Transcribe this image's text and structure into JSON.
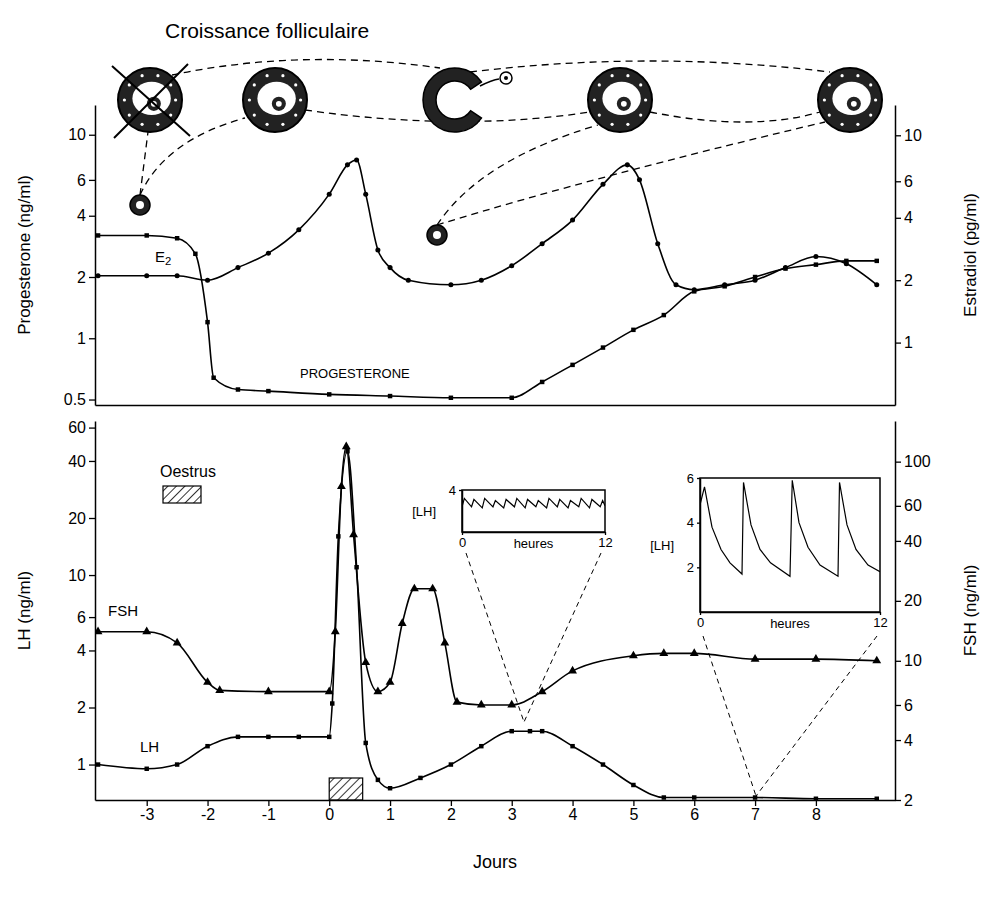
{
  "chart_data": [
    {
      "type": "line",
      "title": "Croissance folliculaire",
      "ylabel": "Progesterone (ng/ml)",
      "y2label": "Estradiol (pg/ml)",
      "xlim": [
        -3.85,
        9.3
      ],
      "ylim": [
        0.47,
        14
      ],
      "yticks": [
        0.5,
        1,
        2,
        4,
        6,
        10
      ],
      "y2lim": [
        0.5,
        14
      ],
      "y2ticks": [
        1,
        2,
        4,
        6,
        10
      ],
      "log": "y",
      "tick_labels": "y",
      "series": [
        {
          "name": "E2",
          "axis": "y2",
          "color": "#000000",
          "marker": "circle",
          "line_style": "solid",
          "x": [
            -3.8,
            -3,
            -2.5,
            -2,
            -1.5,
            -1,
            -0.5,
            0,
            0.3,
            0.45,
            0.6,
            0.8,
            1,
            1.3,
            2,
            2.5,
            3,
            3.5,
            4,
            4.5,
            4.9,
            5.1,
            5.4,
            5.7,
            6,
            6.5,
            7,
            7.5,
            8,
            8.5,
            9
          ],
          "values": [
            2.1,
            2.1,
            2.1,
            2.0,
            2.3,
            2.7,
            3.5,
            5.2,
            7.2,
            7.6,
            5.2,
            2.8,
            2.3,
            2.0,
            1.9,
            2.0,
            2.35,
            3.0,
            3.9,
            5.8,
            7.2,
            6.1,
            3.0,
            1.9,
            1.8,
            1.9,
            2.0,
            2.3,
            2.6,
            2.4,
            1.9
          ]
        },
        {
          "name": "PROGESTERONE",
          "color": "#000000",
          "marker": "square",
          "line_style": "solid",
          "x": [
            -3.8,
            -3,
            -2.5,
            -2.2,
            -2,
            -1.9,
            -1.5,
            -1,
            0,
            1,
            2,
            3,
            3.5,
            4,
            4.5,
            5,
            5.5,
            6,
            6.5,
            7,
            7.5,
            8,
            8.5,
            9
          ],
          "values": [
            3.2,
            3.2,
            3.1,
            2.6,
            1.2,
            0.64,
            0.56,
            0.55,
            0.53,
            0.52,
            0.51,
            0.51,
            0.61,
            0.74,
            0.9,
            1.1,
            1.3,
            1.7,
            1.8,
            2.0,
            2.2,
            2.3,
            2.4,
            2.4
          ]
        }
      ]
    },
    {
      "type": "line",
      "xlabel": "Jours",
      "ylabel": "LH (ng/ml)",
      "y2label": "FSH (ng/ml)",
      "xlim": [
        -3.85,
        9.3
      ],
      "xticks": [
        -3,
        -2,
        -1,
        0,
        1,
        2,
        3,
        4,
        5,
        6,
        7,
        8
      ],
      "ylim": [
        0.65,
        65
      ],
      "yticks": [
        1,
        2,
        4,
        6,
        10,
        20,
        40,
        60
      ],
      "y2lim": [
        2,
        160
      ],
      "y2ticks": [
        2,
        4,
        6,
        10,
        20,
        40,
        60,
        100
      ],
      "log": "y",
      "periods": [
        {
          "label": "Oestrus",
          "x": [
            0,
            0.55
          ]
        }
      ],
      "series": [
        {
          "name": "FSH",
          "axis": "y2",
          "color": "#000000",
          "marker": "triangle",
          "line_style": "solid",
          "x": [
            -3.8,
            -3,
            -2.5,
            -2,
            -1.8,
            -1,
            0,
            0.1,
            0.2,
            0.28,
            0.4,
            0.6,
            0.8,
            1,
            1.2,
            1.4,
            1.7,
            1.9,
            2.1,
            2.5,
            3,
            3.5,
            4,
            5,
            5.5,
            6,
            7,
            8,
            9
          ],
          "values": [
            14,
            14,
            12.3,
            7.8,
            7.1,
            7.0,
            7.0,
            14,
            75,
            119,
            43,
            9.8,
            7.0,
            7.8,
            15.4,
            23,
            23,
            12.3,
            6.2,
            6.0,
            6.0,
            7.0,
            8.9,
            10.6,
            10.9,
            10.9,
            10.2,
            10.2,
            10.0
          ]
        },
        {
          "name": "LH",
          "color": "#000000",
          "marker": "square",
          "line_style": "solid",
          "x": [
            -3.8,
            -3,
            -2.5,
            -2,
            -1.5,
            -1,
            -0.5,
            0,
            0.05,
            0.15,
            0.3,
            0.45,
            0.6,
            0.8,
            1,
            1.5,
            2,
            2.5,
            3,
            3.3,
            3.5,
            4,
            4.5,
            5,
            5.5,
            6,
            7,
            8,
            9
          ],
          "values": [
            1.0,
            0.95,
            1.0,
            1.25,
            1.4,
            1.4,
            1.4,
            1.4,
            2.1,
            16,
            45,
            11,
            1.3,
            0.83,
            0.75,
            0.85,
            1.0,
            1.25,
            1.5,
            1.5,
            1.5,
            1.25,
            1.0,
            0.78,
            0.67,
            0.67,
            0.67,
            0.66,
            0.66
          ]
        }
      ]
    },
    {
      "type": "line",
      "ylabel": "[LH]",
      "xlabel": "heures",
      "xlim": [
        0,
        12
      ],
      "xticks": [
        0,
        12
      ],
      "ylim": [
        0,
        4
      ],
      "yticks": [
        4
      ],
      "series": [
        {
          "color": "#000000",
          "line_style": "solid",
          "x": [
            0,
            0.2,
            0.8,
            1.0,
            1.7,
            1.9,
            2.6,
            2.8,
            3.5,
            3.7,
            4.4,
            4.6,
            5.3,
            5.5,
            6.2,
            6.4,
            7.1,
            7.3,
            8.0,
            8.2,
            8.9,
            9.1,
            9.8,
            10.0,
            10.7,
            10.9,
            11.6,
            11.8,
            12
          ],
          "values": [
            2.4,
            3.2,
            2.4,
            3.1,
            2.3,
            3.2,
            2.4,
            3.0,
            2.3,
            3.1,
            2.4,
            3.2,
            2.3,
            3.1,
            2.4,
            3.0,
            2.3,
            3.2,
            2.4,
            3.1,
            2.3,
            3.0,
            2.4,
            3.2,
            2.3,
            3.1,
            2.4,
            3.0,
            2.5
          ]
        }
      ]
    },
    {
      "type": "line",
      "ylabel": "[LH]",
      "xlabel": "heures",
      "xlim": [
        0,
        12
      ],
      "xticks": [
        0,
        12
      ],
      "ylim": [
        0,
        6
      ],
      "yticks": [
        2,
        4,
        6
      ],
      "series": [
        {
          "color": "#000000",
          "line_style": "solid",
          "x": [
            0,
            0.3,
            0.8,
            1.4,
            2.0,
            2.8,
            2.9,
            3.4,
            4.0,
            4.7,
            6.0,
            6.15,
            6.6,
            7.2,
            8.0,
            9.2,
            9.3,
            9.8,
            10.4,
            11.2,
            12
          ],
          "values": [
            4.8,
            5.6,
            3.8,
            2.8,
            2.2,
            1.7,
            5.8,
            3.9,
            2.8,
            2.2,
            1.6,
            5.9,
            4.0,
            2.9,
            2.1,
            1.6,
            5.8,
            3.9,
            2.8,
            2.1,
            1.8
          ]
        }
      ]
    }
  ]
}
